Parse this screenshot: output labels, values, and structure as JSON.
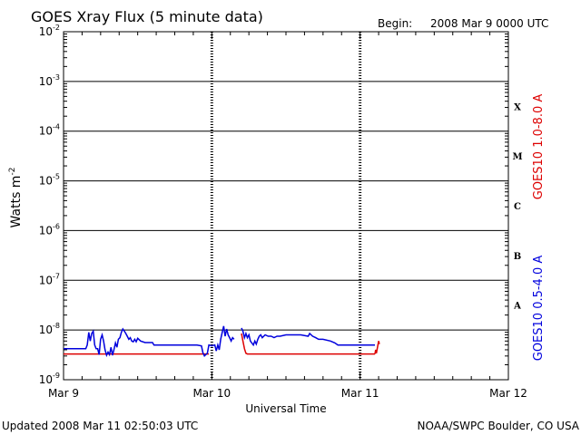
{
  "header": {
    "title": "GOES Xray Flux (5 minute data)",
    "begin_label": "Begin:",
    "begin_value": "2008 Mar 9 0000 UTC"
  },
  "footer": {
    "updated": "Updated 2008 Mar 11 02:50:03 UTC",
    "credit": "NOAA/SWPC Boulder, CO USA"
  },
  "chart_data": {
    "type": "line",
    "title": "GOES Xray Flux (5 minute data)",
    "xlabel": "Universal Time",
    "ylabel": "Watts m",
    "ylabel_exp": "-2",
    "x_unit": "days since 2008 Mar 9 0000 UTC",
    "xlim": [
      0,
      3
    ],
    "x_ticks": [
      {
        "x": 0,
        "label": "Mar 9"
      },
      {
        "x": 1,
        "label": "Mar 10"
      },
      {
        "x": 2,
        "label": "Mar 11"
      },
      {
        "x": 3,
        "label": "Mar 12"
      }
    ],
    "yscale": "log",
    "ylim": [
      1e-09,
      0.01
    ],
    "y_ticks": [
      {
        "exp": -9,
        "base": "10",
        "sup": "-9"
      },
      {
        "exp": -8,
        "base": "10",
        "sup": "-8"
      },
      {
        "exp": -7,
        "base": "10",
        "sup": "-7"
      },
      {
        "exp": -6,
        "base": "10",
        "sup": "-6"
      },
      {
        "exp": -5,
        "base": "10",
        "sup": "-5"
      },
      {
        "exp": -4,
        "base": "10",
        "sup": "-4"
      },
      {
        "exp": -3,
        "base": "10",
        "sup": "-3"
      },
      {
        "exp": -2,
        "base": "10",
        "sup": "-2"
      }
    ],
    "grid": true,
    "flare_classes": [
      {
        "label": "A",
        "exp": -7.5
      },
      {
        "label": "B",
        "exp": -6.5
      },
      {
        "label": "C",
        "exp": -5.5
      },
      {
        "label": "M",
        "exp": -4.5
      },
      {
        "label": "X",
        "exp": -3.5
      }
    ],
    "series": [
      {
        "name": "GOES10 1.0-8.0 A",
        "color": "#dd0000",
        "segments": [
          [
            [
              0.0,
              3.3e-09
            ],
            [
              0.35,
              3.3e-09
            ],
            [
              0.7,
              3.3e-09
            ],
            [
              0.98,
              3.3e-09
            ]
          ],
          [
            [
              1.2,
              8.5e-09
            ],
            [
              1.21,
              6e-09
            ],
            [
              1.22,
              4.2e-09
            ],
            [
              1.23,
              3.4e-09
            ],
            [
              1.24,
              3.3e-09
            ],
            [
              1.6,
              3.3e-09
            ],
            [
              2.1,
              3.3e-09
            ]
          ],
          [
            [
              2.1,
              3.3e-09
            ],
            [
              2.105,
              4e-09
            ],
            [
              2.11,
              3.4e-09
            ],
            [
              2.12,
              5e-09
            ],
            [
              2.125,
              6e-09
            ],
            [
              2.13,
              5.2e-09
            ]
          ]
        ]
      },
      {
        "name": "GOES10 0.5-4.0 A",
        "color": "#0000dd",
        "segments": [
          [
            [
              0.0,
              4.2e-09
            ],
            [
              0.15,
              4.2e-09
            ],
            [
              0.16,
              5e-09
            ],
            [
              0.17,
              9e-09
            ],
            [
              0.18,
              6e-09
            ],
            [
              0.19,
              8.5e-09
            ],
            [
              0.2,
              9.5e-09
            ],
            [
              0.21,
              5e-09
            ],
            [
              0.22,
              4.2e-09
            ],
            [
              0.23,
              4.2e-09
            ],
            [
              0.24,
              3.2e-09
            ],
            [
              0.25,
              6.5e-09
            ],
            [
              0.26,
              8e-09
            ],
            [
              0.27,
              6e-09
            ],
            [
              0.28,
              4e-09
            ],
            [
              0.29,
              3.1e-09
            ],
            [
              0.3,
              3.6e-09
            ],
            [
              0.31,
              3.2e-09
            ],
            [
              0.32,
              4.5e-09
            ],
            [
              0.33,
              3.1e-09
            ],
            [
              0.34,
              4e-09
            ],
            [
              0.35,
              5.5e-09
            ],
            [
              0.36,
              4.5e-09
            ],
            [
              0.37,
              6.5e-09
            ],
            [
              0.38,
              7e-09
            ],
            [
              0.39,
              9e-09
            ],
            [
              0.4,
              1.05e-08
            ],
            [
              0.41,
              9.5e-09
            ],
            [
              0.42,
              8.5e-09
            ],
            [
              0.43,
              7.5e-09
            ],
            [
              0.44,
              6.5e-09
            ],
            [
              0.45,
              7e-09
            ],
            [
              0.46,
              6e-09
            ],
            [
              0.47,
              5.8e-09
            ],
            [
              0.48,
              6.5e-09
            ],
            [
              0.49,
              5.8e-09
            ],
            [
              0.5,
              6.8e-09
            ],
            [
              0.52,
              6e-09
            ],
            [
              0.55,
              5.6e-09
            ],
            [
              0.6,
              5.6e-09
            ],
            [
              0.61,
              5e-09
            ],
            [
              0.65,
              5e-09
            ],
            [
              0.75,
              5e-09
            ],
            [
              0.9,
              5e-09
            ],
            [
              0.93,
              4.8e-09
            ],
            [
              0.94,
              3.5e-09
            ],
            [
              0.95,
              3e-09
            ],
            [
              0.97,
              3.4e-09
            ],
            [
              0.98,
              5e-09
            ],
            [
              1.0,
              4.8e-09
            ],
            [
              1.02,
              5e-09
            ],
            [
              1.03,
              3.8e-09
            ],
            [
              1.04,
              5e-09
            ],
            [
              1.05,
              4e-09
            ],
            [
              1.06,
              6.5e-09
            ],
            [
              1.07,
              9e-09
            ],
            [
              1.08,
              1.2e-08
            ],
            [
              1.09,
              7.5e-09
            ],
            [
              1.1,
              1.05e-08
            ],
            [
              1.11,
              8e-09
            ],
            [
              1.12,
              7e-09
            ],
            [
              1.13,
              6e-09
            ],
            [
              1.14,
              7e-09
            ],
            [
              1.15,
              6.5e-09
            ]
          ],
          [
            [
              1.2,
              1.1e-08
            ],
            [
              1.21,
              9.5e-09
            ],
            [
              1.22,
              7e-09
            ],
            [
              1.23,
              8.5e-09
            ],
            [
              1.24,
              7e-09
            ],
            [
              1.25,
              8e-09
            ],
            [
              1.26,
              6e-09
            ],
            [
              1.27,
              5.5e-09
            ],
            [
              1.28,
              5e-09
            ],
            [
              1.29,
              6e-09
            ],
            [
              1.3,
              5.2e-09
            ],
            [
              1.31,
              6.5e-09
            ],
            [
              1.32,
              7.5e-09
            ],
            [
              1.33,
              8e-09
            ],
            [
              1.34,
              7e-09
            ],
            [
              1.36,
              8e-09
            ],
            [
              1.38,
              7.5e-09
            ],
            [
              1.4,
              7.5e-09
            ],
            [
              1.42,
              7e-09
            ],
            [
              1.44,
              7.5e-09
            ],
            [
              1.46,
              7.5e-09
            ],
            [
              1.5,
              8e-09
            ],
            [
              1.55,
              8e-09
            ],
            [
              1.6,
              8e-09
            ],
            [
              1.65,
              7.5e-09
            ],
            [
              1.66,
              8.5e-09
            ],
            [
              1.68,
              7.5e-09
            ],
            [
              1.7,
              7e-09
            ],
            [
              1.72,
              6.5e-09
            ],
            [
              1.75,
              6.5e-09
            ],
            [
              1.8,
              6e-09
            ],
            [
              1.83,
              5.5e-09
            ],
            [
              1.85,
              5e-09
            ],
            [
              1.9,
              5e-09
            ],
            [
              2.0,
              5e-09
            ],
            [
              2.05,
              5e-09
            ],
            [
              2.1,
              5e-09
            ]
          ]
        ]
      }
    ],
    "series_labels_right": [
      {
        "text": "GOES10 1.0-8.0 A",
        "color": "#dd0000"
      },
      {
        "text": "GOES10 0.5-4.0 A",
        "color": "#0000dd"
      }
    ]
  }
}
